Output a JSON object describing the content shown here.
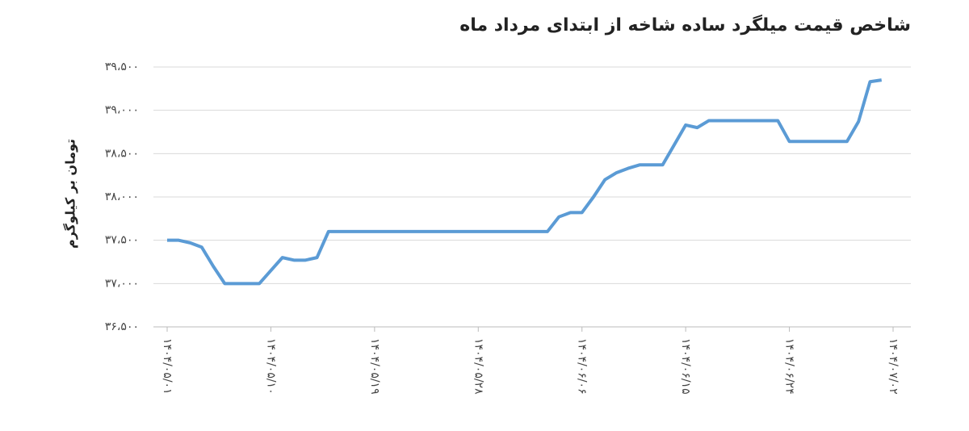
{
  "chart_data": {
    "type": "line",
    "title": "شاخص قیمت میلگرد ساده شاخه از ابتدای مرداد ماه",
    "y_label": "تومان بر کیلوگرم",
    "categories": [
      "۱۴۰۴/۰۵/۰۱",
      null,
      null,
      null,
      null,
      null,
      null,
      null,
      null,
      "۱۴۰۴/۰۵/۱۰",
      null,
      null,
      null,
      null,
      null,
      null,
      null,
      null,
      "۱۴۰۴/۰۵/۱۹",
      null,
      null,
      null,
      null,
      null,
      null,
      null,
      null,
      "۱۴۰۴/۰۵/۲۸",
      null,
      null,
      null,
      null,
      null,
      null,
      null,
      null,
      "۱۴۰۴/۰۶/۰۶",
      null,
      null,
      null,
      null,
      null,
      null,
      null,
      null,
      "۱۴۰۴/۰۶/۱۵",
      null,
      null,
      null,
      null,
      null,
      null,
      null,
      null,
      "۱۴۰۴/۰۶/۲۴",
      null,
      null,
      null,
      null,
      null,
      null,
      null,
      null,
      "۱۴۰۴/۰۷/۰۲"
    ],
    "series": [
      {
        "color": "#5b9bd5",
        "values": [
          37500,
          37500,
          37470,
          37420,
          37200,
          37000,
          37000,
          37000,
          37000,
          37150,
          37300,
          37270,
          37270,
          37300,
          37600,
          37600,
          37600,
          37600,
          37600,
          37600,
          37600,
          37600,
          37600,
          37600,
          37600,
          37600,
          37600,
          37600,
          37600,
          37600,
          37600,
          37600,
          37600,
          37600,
          37770,
          37820,
          37820,
          38000,
          38200,
          38280,
          38330,
          38370,
          38370,
          38370,
          38600,
          38830,
          38800,
          38880,
          38880,
          38880,
          38880,
          38880,
          38880,
          38880,
          38640,
          38640,
          38640,
          38640,
          38640,
          38640,
          38870,
          39330,
          39350,
          null
        ]
      }
    ],
    "ylim": [
      36500,
      39500
    ],
    "yticks": [
      {
        "value": 36500,
        "label": "۳۶،۵۰۰"
      },
      {
        "value": 37000,
        "label": "۳۷،۰۰۰"
      },
      {
        "value": 37500,
        "label": "۳۷،۵۰۰"
      },
      {
        "value": 38000,
        "label": "۳۸،۰۰۰"
      },
      {
        "value": 38500,
        "label": "۳۸،۵۰۰"
      },
      {
        "value": 39000,
        "label": "۳۹،۰۰۰"
      },
      {
        "value": 39500,
        "label": "۳۹،۵۰۰"
      }
    ],
    "grid": true
  }
}
